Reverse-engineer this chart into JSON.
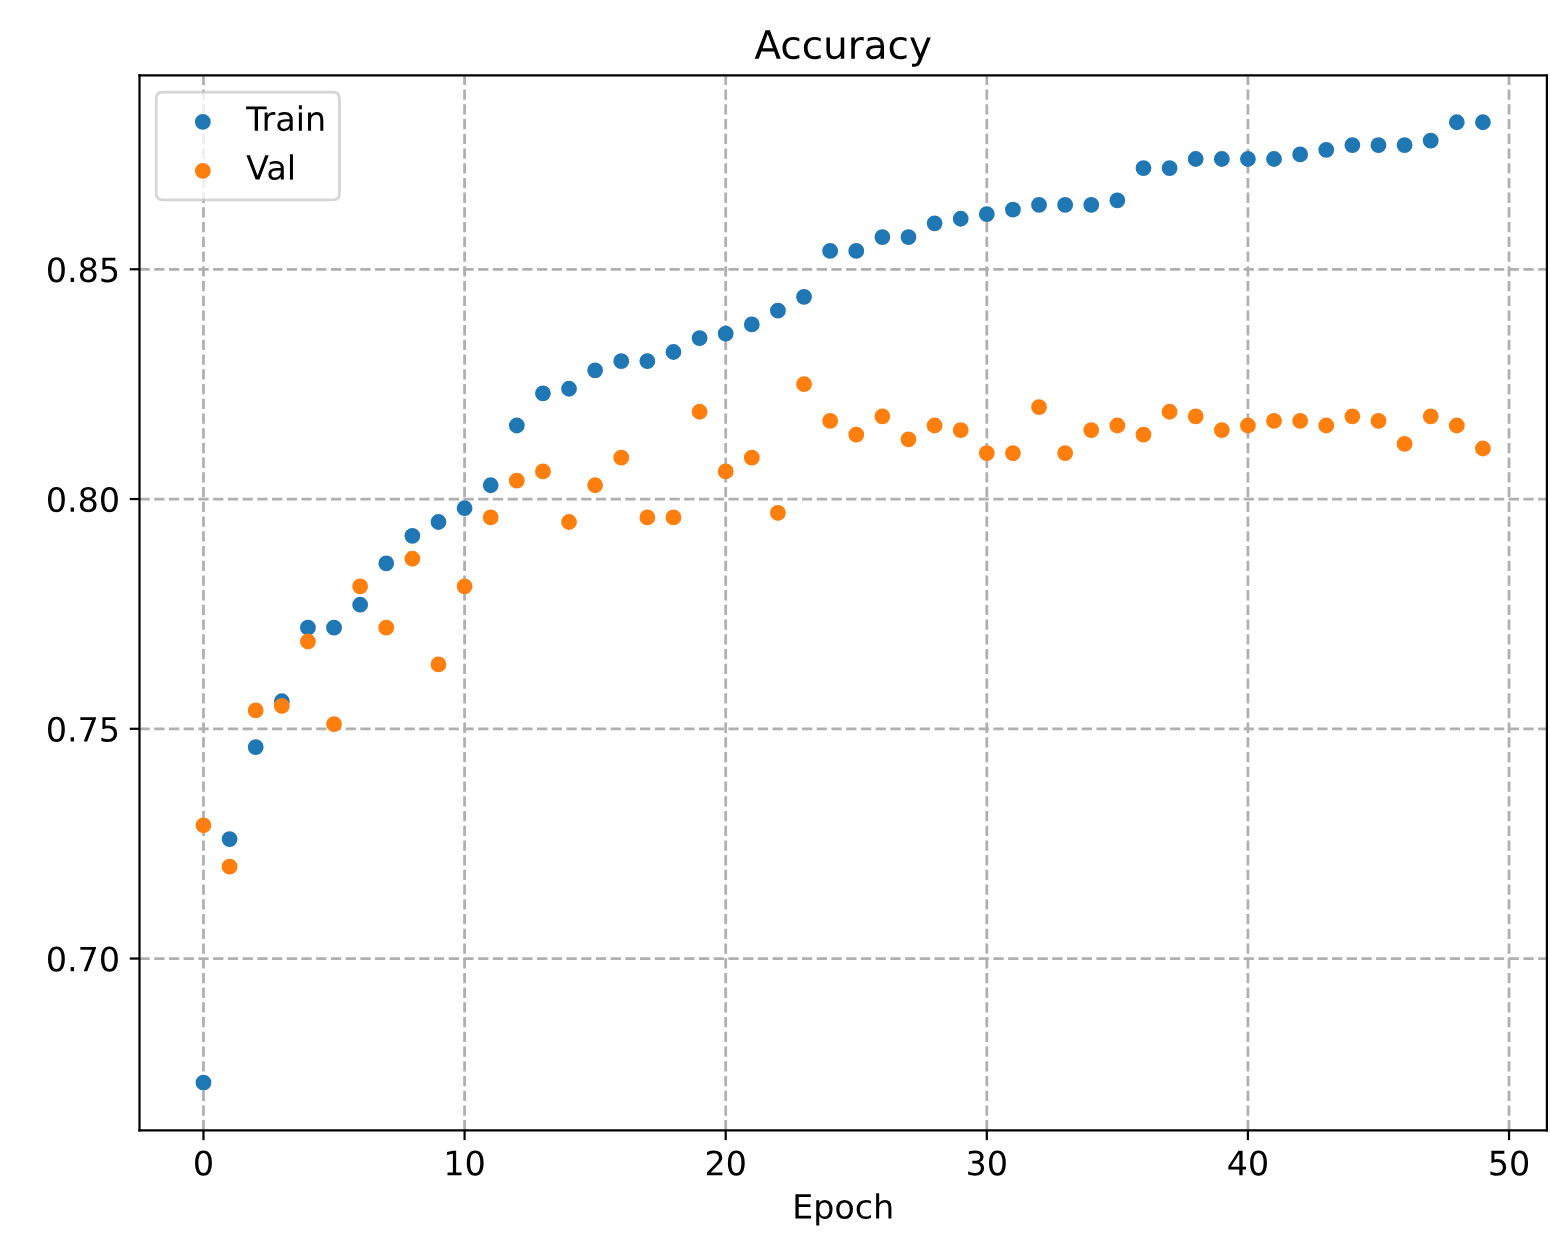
{
  "chart_data": {
    "type": "scatter",
    "title": "Accuracy",
    "xlabel": "Epoch",
    "x": [
      0,
      1,
      2,
      3,
      4,
      5,
      6,
      7,
      8,
      9,
      10,
      11,
      12,
      13,
      14,
      15,
      16,
      17,
      18,
      19,
      20,
      21,
      22,
      23,
      24,
      25,
      26,
      27,
      28,
      29,
      30,
      31,
      32,
      33,
      34,
      35,
      36,
      37,
      38,
      39,
      40,
      41,
      42,
      43,
      44,
      45,
      46,
      47,
      48,
      49
    ],
    "series": [
      {
        "name": "Train",
        "color": "#1f77b4",
        "values": [
          0.673,
          0.726,
          0.746,
          0.756,
          0.772,
          0.772,
          0.777,
          0.786,
          0.792,
          0.795,
          0.798,
          0.803,
          0.816,
          0.823,
          0.824,
          0.828,
          0.83,
          0.83,
          0.832,
          0.835,
          0.836,
          0.838,
          0.841,
          0.844,
          0.854,
          0.854,
          0.857,
          0.857,
          0.86,
          0.861,
          0.862,
          0.863,
          0.864,
          0.864,
          0.864,
          0.865,
          0.872,
          0.872,
          0.874,
          0.874,
          0.874,
          0.874,
          0.875,
          0.876,
          0.877,
          0.877,
          0.877,
          0.878,
          0.882,
          0.882
        ]
      },
      {
        "name": "Val",
        "color": "#ff7f0e",
        "values": [
          0.729,
          0.72,
          0.754,
          0.755,
          0.769,
          0.751,
          0.781,
          0.772,
          0.787,
          0.764,
          0.781,
          0.796,
          0.804,
          0.806,
          0.795,
          0.803,
          0.809,
          0.796,
          0.796,
          0.819,
          0.806,
          0.809,
          0.797,
          0.825,
          0.817,
          0.814,
          0.818,
          0.813,
          0.816,
          0.815,
          0.81,
          0.81,
          0.82,
          0.81,
          0.815,
          0.816,
          0.814,
          0.819,
          0.818,
          0.815,
          0.816,
          0.817,
          0.817,
          0.816,
          0.818,
          0.817,
          0.812,
          0.818,
          0.816,
          0.811
        ]
      }
    ],
    "xlim": [
      -2.45,
      51.45
    ],
    "xticks": [
      0,
      10,
      20,
      30,
      40,
      50
    ],
    "ylim": [
      0.6626,
      0.8922
    ],
    "yticks": [
      {
        "value": 0.7,
        "label": "0.70"
      },
      {
        "value": 0.75,
        "label": "0.75"
      },
      {
        "value": 0.8,
        "label": "0.80"
      },
      {
        "value": 0.85,
        "label": "0.85"
      }
    ],
    "grid": true,
    "line_style": "dashed",
    "legend": "top left",
    "marker": "circle"
  }
}
